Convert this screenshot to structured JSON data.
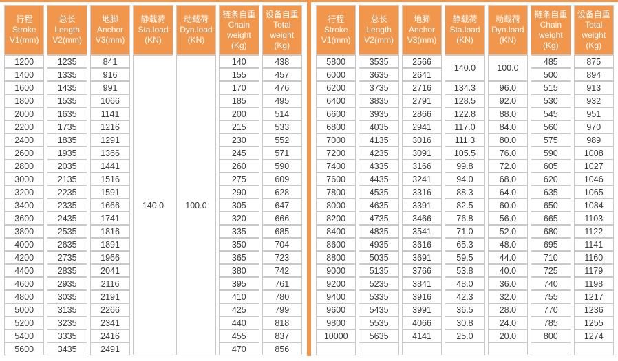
{
  "page": {
    "accent_color": "#F0964D",
    "border_color": "#C9C9C9",
    "text_color": "#3B3B3B"
  },
  "table": {
    "header_columns": [
      {
        "id": "stroke",
        "lines": [
          "行程",
          "Stroke",
          "V1(mm)"
        ]
      },
      {
        "id": "length",
        "lines": [
          "总长",
          "Length",
          "V2(mm)"
        ]
      },
      {
        "id": "anchor",
        "lines": [
          "地脚",
          "Anchor",
          "V3(mm)"
        ]
      },
      {
        "id": "sta-load",
        "lines": [
          "静载荷",
          "Sta.load",
          "(KN)"
        ]
      },
      {
        "id": "dyn-load",
        "lines": [
          "动载荷",
          "Dyn.load",
          "(KN)"
        ]
      },
      {
        "id": "chain-weight",
        "lines": [
          "链条自重",
          "Chain",
          "weight",
          "(Kg)"
        ]
      },
      {
        "id": "total-weight",
        "lines": [
          "设备自重",
          "Total",
          "weight",
          "(Kg)"
        ]
      }
    ],
    "column_order": [
      "stroke",
      "length",
      "anchor",
      "sta-load",
      "dyn-load",
      "chain-weight",
      "total-weight"
    ],
    "left": {
      "merged": {
        "span": 23,
        "sta": "140.0",
        "dyn": "100.0"
      },
      "rows": [
        [
          "1200",
          "1235",
          "841",
          null,
          null,
          "140",
          "438"
        ],
        [
          "1400",
          "1335",
          "916",
          null,
          null,
          "155",
          "457"
        ],
        [
          "1600",
          "1435",
          "991",
          null,
          null,
          "170",
          "476"
        ],
        [
          "1800",
          "1535",
          "1066",
          null,
          null,
          "185",
          "495"
        ],
        [
          "2000",
          "1635",
          "1141",
          null,
          null,
          "200",
          "514"
        ],
        [
          "2200",
          "1735",
          "1216",
          null,
          null,
          "215",
          "533"
        ],
        [
          "2400",
          "1835",
          "1291",
          null,
          null,
          "230",
          "552"
        ],
        [
          "2600",
          "1935",
          "1366",
          null,
          null,
          "245",
          "571"
        ],
        [
          "2800",
          "2035",
          "1441",
          null,
          null,
          "260",
          "590"
        ],
        [
          "3000",
          "2135",
          "1516",
          null,
          null,
          "275",
          "609"
        ],
        [
          "3200",
          "2235",
          "1591",
          null,
          null,
          "290",
          "628"
        ],
        [
          "3400",
          "2335",
          "1666",
          null,
          null,
          "305",
          "647"
        ],
        [
          "3600",
          "2435",
          "1741",
          null,
          null,
          "320",
          "666"
        ],
        [
          "3800",
          "2535",
          "1816",
          null,
          null,
          "335",
          "685"
        ],
        [
          "4000",
          "2635",
          "1891",
          null,
          null,
          "350",
          "704"
        ],
        [
          "4200",
          "2735",
          "1966",
          null,
          null,
          "365",
          "723"
        ],
        [
          "4400",
          "2835",
          "2041",
          null,
          null,
          "380",
          "742"
        ],
        [
          "4600",
          "2935",
          "2116",
          null,
          null,
          "395",
          "761"
        ],
        [
          "4800",
          "3035",
          "2191",
          null,
          null,
          "410",
          "780"
        ],
        [
          "5000",
          "3135",
          "2266",
          null,
          null,
          "425",
          "799"
        ],
        [
          "5200",
          "3235",
          "2341",
          null,
          null,
          "440",
          "818"
        ],
        [
          "5400",
          "3335",
          "2416",
          null,
          null,
          "455",
          "837"
        ],
        [
          "5600",
          "3435",
          "2491",
          null,
          null,
          "470",
          "856"
        ]
      ]
    },
    "right": {
      "merged": {
        "span": 2,
        "sta": "140.0",
        "dyn": "100.0"
      },
      "rows": [
        [
          "5800",
          "3535",
          "2566",
          null,
          null,
          "485",
          "875"
        ],
        [
          "6000",
          "3635",
          "2641",
          null,
          null,
          "500",
          "894"
        ],
        [
          "6200",
          "3735",
          "2716",
          "134.3",
          "96.0",
          "515",
          "913"
        ],
        [
          "6400",
          "3835",
          "2791",
          "128.5",
          "92.0",
          "530",
          "932"
        ],
        [
          "6600",
          "3935",
          "2866",
          "122.8",
          "88.0",
          "545",
          "951"
        ],
        [
          "6800",
          "4035",
          "2941",
          "117.0",
          "84.0",
          "560",
          "970"
        ],
        [
          "7000",
          "4135",
          "3016",
          "111.3",
          "80.0",
          "575",
          "989"
        ],
        [
          "7200",
          "4235",
          "3091",
          "105.5",
          "76.0",
          "590",
          "1008"
        ],
        [
          "7400",
          "4335",
          "3166",
          "99.8",
          "72.0",
          "605",
          "1027"
        ],
        [
          "7600",
          "4435",
          "3241",
          "94.0",
          "68.0",
          "620",
          "1046"
        ],
        [
          "7800",
          "4535",
          "3316",
          "88.3",
          "64.0",
          "635",
          "1065"
        ],
        [
          "8000",
          "4635",
          "3391",
          "82.5",
          "60.0",
          "650",
          "1084"
        ],
        [
          "8200",
          "4735",
          "3466",
          "76.8",
          "56.0",
          "665",
          "1103"
        ],
        [
          "8400",
          "4835",
          "3541",
          "71.0",
          "52.0",
          "680",
          "1122"
        ],
        [
          "8600",
          "4935",
          "3616",
          "65.3",
          "48.0",
          "695",
          "1141"
        ],
        [
          "8800",
          "5035",
          "3691",
          "59.5",
          "44.0",
          "710",
          "1160"
        ],
        [
          "9000",
          "5135",
          "3766",
          "53.8",
          "40.0",
          "725",
          "1179"
        ],
        [
          "9200",
          "5235",
          "3841",
          "48.0",
          "36.0",
          "740",
          "1198"
        ],
        [
          "9400",
          "5335",
          "3916",
          "42.3",
          "32.0",
          "755",
          "1217"
        ],
        [
          "9600",
          "5435",
          "3991",
          "36.5",
          "28.0",
          "770",
          "1236"
        ],
        [
          "9800",
          "5535",
          "4066",
          "30.8",
          "24.0",
          "785",
          "1255"
        ],
        [
          "10000",
          "5635",
          "4141",
          "25.0",
          "20.0",
          "800",
          "1274"
        ],
        [
          "",
          "",
          "",
          "",
          "",
          "",
          ""
        ]
      ]
    }
  }
}
